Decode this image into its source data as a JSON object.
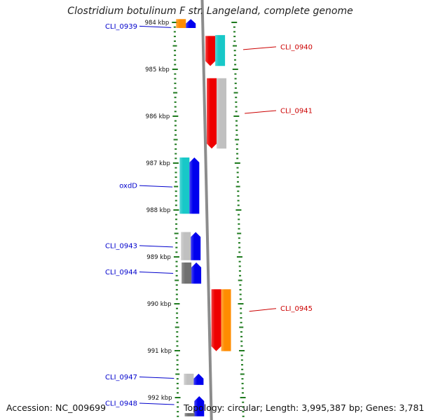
{
  "title": "Clostridium botulinum F str. Langeland, complete genome",
  "accession_text": "Accession: NC_009699",
  "summary_text": "Topology: circular; Length: 3,995,387 bp; Genes: 3,781",
  "colors": {
    "backbone": "#8c8c8c",
    "tick_green": "#1e7a1e",
    "label_reverse": "#0000cc",
    "label_forward": "#cc0000",
    "blue": "#0000ee",
    "red": "#ee0000",
    "cyan": "#18c8c8",
    "orange": "#ff8c00",
    "gray_light": "#c0c0c0",
    "gray_dark": "#707070"
  },
  "kbp_ticks": [
    {
      "kbp": 984,
      "label": "984 kbp"
    },
    {
      "kbp": 985,
      "label": "985 kbp"
    },
    {
      "kbp": 986,
      "label": "986 kbp"
    },
    {
      "kbp": 987,
      "label": "987 kbp"
    },
    {
      "kbp": 988,
      "label": "988 kbp"
    },
    {
      "kbp": 989,
      "label": "989 kbp"
    },
    {
      "kbp": 990,
      "label": "990 kbp"
    },
    {
      "kbp": 991,
      "label": "991 kbp"
    },
    {
      "kbp": 992,
      "label": "992 kbp"
    }
  ],
  "gene_labels": [
    {
      "label": "CLI_0939",
      "strand": "reverse",
      "kbp": 984.08
    },
    {
      "label": "CLI_0940",
      "strand": "forward",
      "kbp": 984.52
    },
    {
      "label": "CLI_0941",
      "strand": "forward",
      "kbp": 985.88
    },
    {
      "label": "oxdD",
      "strand": "reverse",
      "kbp": 987.48
    },
    {
      "label": "CLI_0943",
      "strand": "reverse",
      "kbp": 988.76
    },
    {
      "label": "CLI_0944",
      "strand": "reverse",
      "kbp": 989.32
    },
    {
      "label": "CLI_0945",
      "strand": "forward",
      "kbp": 990.1
    },
    {
      "label": "CLI_0947",
      "strand": "reverse",
      "kbp": 991.56
    },
    {
      "label": "CLI_0948",
      "strand": "reverse",
      "kbp": 992.12
    }
  ],
  "features": [
    {
      "strand": "reverse",
      "track": "cog",
      "color": "orange",
      "start": 983.93,
      "end": 984.12
    },
    {
      "strand": "reverse",
      "track": "cds",
      "color": "blue",
      "start": 983.93,
      "end": 984.12
    },
    {
      "strand": "forward",
      "track": "cds",
      "color": "red",
      "start": 984.29,
      "end": 984.93
    },
    {
      "strand": "forward",
      "track": "cog",
      "color": "cyan",
      "start": 984.27,
      "end": 984.93
    },
    {
      "strand": "forward",
      "track": "cds",
      "color": "red",
      "start": 985.19,
      "end": 986.69
    },
    {
      "strand": "forward",
      "track": "cog",
      "color": "gray_light",
      "start": 985.19,
      "end": 986.69
    },
    {
      "strand": "reverse",
      "track": "cog",
      "color": "cyan",
      "start": 986.88,
      "end": 988.08
    },
    {
      "strand": "reverse",
      "track": "cds",
      "color": "blue",
      "start": 986.88,
      "end": 988.08
    },
    {
      "strand": "reverse",
      "track": "cog",
      "color": "gray_light",
      "start": 988.47,
      "end": 989.07
    },
    {
      "strand": "reverse",
      "track": "cds",
      "color": "blue",
      "start": 988.47,
      "end": 989.07
    },
    {
      "strand": "reverse",
      "track": "cog",
      "color": "gray_dark",
      "start": 989.12,
      "end": 989.57
    },
    {
      "strand": "reverse",
      "track": "cds",
      "color": "blue",
      "start": 989.12,
      "end": 989.57
    },
    {
      "strand": "forward",
      "track": "cds",
      "color": "red",
      "start": 989.69,
      "end": 991.01
    },
    {
      "strand": "forward",
      "track": "cog",
      "color": "orange",
      "start": 989.69,
      "end": 991.01
    },
    {
      "strand": "reverse",
      "track": "cog",
      "color": "gray_light",
      "start": 991.49,
      "end": 991.73
    },
    {
      "strand": "reverse",
      "track": "cds",
      "color": "blue",
      "start": 991.49,
      "end": 991.73
    },
    {
      "strand": "reverse",
      "track": "cds",
      "color": "blue",
      "start": 991.97,
      "end": 992.4
    },
    {
      "strand": "reverse",
      "track": "cog",
      "color": "gray_dark",
      "start": 992.33,
      "end": 992.4
    }
  ]
}
